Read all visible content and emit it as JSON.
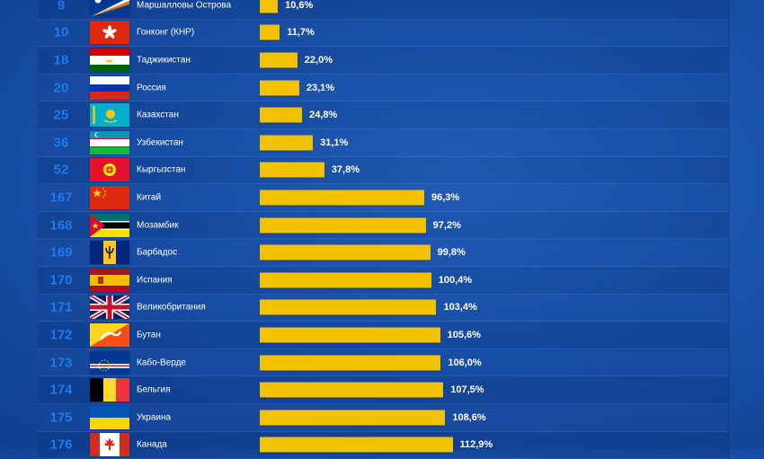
{
  "chart_data": {
    "type": "bar",
    "orientation": "horizontal",
    "rows": [
      {
        "rank": "9",
        "country": "Маршалловы Острова",
        "value": 10.6,
        "label": "10,6%",
        "flag": "marshall-islands"
      },
      {
        "rank": "10",
        "country": "Гонконг (КНР)",
        "value": 11.7,
        "label": "11,7%",
        "flag": "hong-kong"
      },
      {
        "rank": "18",
        "country": "Таджикистан",
        "value": 22.0,
        "label": "22,0%",
        "flag": "tajikistan"
      },
      {
        "rank": "20",
        "country": "Россия",
        "value": 23.1,
        "label": "23,1%",
        "flag": "russia"
      },
      {
        "rank": "25",
        "country": "Казахстан",
        "value": 24.8,
        "label": "24,8%",
        "flag": "kazakhstan"
      },
      {
        "rank": "36",
        "country": "Узбекистан",
        "value": 31.1,
        "label": "31,1%",
        "flag": "uzbekistan"
      },
      {
        "rank": "52",
        "country": "Кыргызстан",
        "value": 37.8,
        "label": "37,8%",
        "flag": "kyrgyzstan"
      },
      {
        "rank": "167",
        "country": "Китай",
        "value": 96.3,
        "label": "96,3%",
        "flag": "china"
      },
      {
        "rank": "168",
        "country": "Мозамбик",
        "value": 97.2,
        "label": "97,2%",
        "flag": "mozambique"
      },
      {
        "rank": "169",
        "country": "Барбадос",
        "value": 99.8,
        "label": "99,8%",
        "flag": "barbados"
      },
      {
        "rank": "170",
        "country": "Испания",
        "value": 100.4,
        "label": "100,4%",
        "flag": "spain"
      },
      {
        "rank": "171",
        "country": "Великобритания",
        "value": 103.4,
        "label": "103,4%",
        "flag": "united-kingdom"
      },
      {
        "rank": "172",
        "country": "Бутан",
        "value": 105.6,
        "label": "105,6%",
        "flag": "bhutan"
      },
      {
        "rank": "173",
        "country": "Кабо-Верде",
        "value": 106.0,
        "label": "106,0%",
        "flag": "cape-verde"
      },
      {
        "rank": "174",
        "country": "Бельгия",
        "value": 107.5,
        "label": "107,5%",
        "flag": "belgium"
      },
      {
        "rank": "175",
        "country": "Украина",
        "value": 108.6,
        "label": "108,6%",
        "flag": "ukraine"
      },
      {
        "rank": "176",
        "country": "Канада",
        "value": 112.9,
        "label": "112,9%",
        "flag": "canada"
      }
    ]
  },
  "colors": {
    "bar": "#f2c200",
    "rank": "#1f7cf0",
    "text": "#ffffff",
    "background": "#1a55b0"
  }
}
